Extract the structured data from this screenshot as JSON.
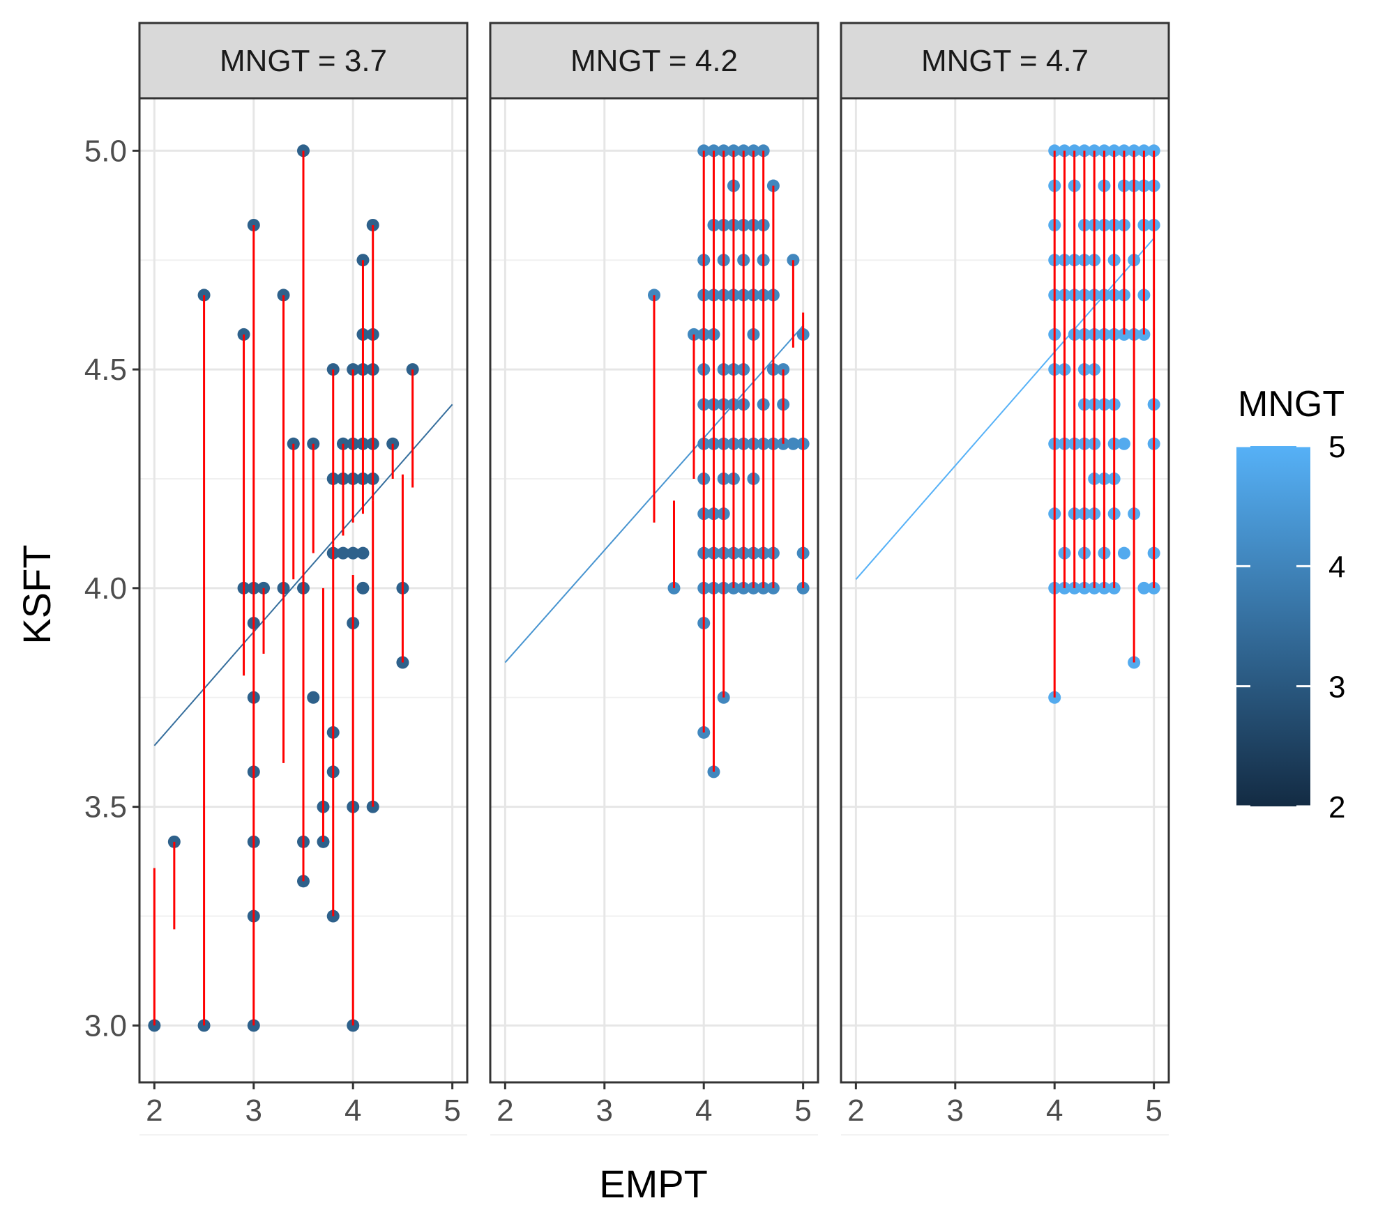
{
  "chart_data": {
    "type": "scatter",
    "facet_variable": "MNGT",
    "xlabel": "EMPT",
    "ylabel": "KSFT",
    "xlim": [
      1.85,
      5.15
    ],
    "ylim": [
      2.87,
      5.12
    ],
    "x_ticks": [
      2,
      3,
      4,
      5
    ],
    "y_ticks": [
      3.0,
      3.5,
      4.0,
      4.5,
      5.0
    ],
    "y_tick_labels": [
      "3.0",
      "3.5",
      "4.0",
      "4.5",
      "5.0"
    ],
    "grid": true,
    "legend": {
      "title": "MNGT",
      "min": 2,
      "max": 5,
      "breaks": [
        2,
        3,
        4,
        5
      ],
      "break_labels": [
        "2",
        "3",
        "4",
        "5"
      ],
      "position": "right",
      "color_low": "#132B43",
      "color_high": "#56B1F7"
    },
    "residual_color": "#ff0000",
    "panels": [
      {
        "label": "MNGT = 3.7",
        "mngt": 3.7,
        "point_mngt": 3.2,
        "fit_line": {
          "x": [
            2.0,
            5.0
          ],
          "y": [
            3.64,
            4.42
          ]
        },
        "points": [
          [
            2.0,
            3.0
          ],
          [
            2.2,
            3.42
          ],
          [
            2.5,
            3.0
          ],
          [
            2.5,
            4.67
          ],
          [
            2.9,
            4.0
          ],
          [
            2.9,
            4.58
          ],
          [
            3.0,
            3.0
          ],
          [
            3.0,
            3.25
          ],
          [
            3.0,
            3.42
          ],
          [
            3.0,
            3.58
          ],
          [
            3.0,
            3.75
          ],
          [
            3.0,
            3.92
          ],
          [
            3.0,
            4.0
          ],
          [
            3.0,
            4.83
          ],
          [
            3.1,
            4.0
          ],
          [
            3.3,
            4.0
          ],
          [
            3.3,
            4.67
          ],
          [
            3.4,
            4.33
          ],
          [
            3.5,
            3.33
          ],
          [
            3.5,
            3.42
          ],
          [
            3.5,
            4.0
          ],
          [
            3.5,
            5.0
          ],
          [
            3.6,
            3.75
          ],
          [
            3.6,
            4.33
          ],
          [
            3.7,
            3.42
          ],
          [
            3.7,
            3.5
          ],
          [
            3.8,
            3.25
          ],
          [
            3.8,
            3.58
          ],
          [
            3.8,
            3.67
          ],
          [
            3.8,
            4.08
          ],
          [
            3.8,
            4.25
          ],
          [
            3.8,
            4.5
          ],
          [
            3.9,
            4.08
          ],
          [
            3.9,
            4.25
          ],
          [
            3.9,
            4.33
          ],
          [
            4.0,
            3.0
          ],
          [
            4.0,
            3.5
          ],
          [
            4.0,
            3.92
          ],
          [
            4.0,
            4.08
          ],
          [
            4.0,
            4.25
          ],
          [
            4.0,
            4.33
          ],
          [
            4.0,
            4.5
          ],
          [
            4.1,
            4.0
          ],
          [
            4.1,
            4.08
          ],
          [
            4.1,
            4.25
          ],
          [
            4.1,
            4.33
          ],
          [
            4.1,
            4.5
          ],
          [
            4.1,
            4.58
          ],
          [
            4.1,
            4.75
          ],
          [
            4.2,
            3.5
          ],
          [
            4.2,
            4.25
          ],
          [
            4.2,
            4.33
          ],
          [
            4.2,
            4.5
          ],
          [
            4.2,
            4.58
          ],
          [
            4.2,
            4.83
          ],
          [
            4.4,
            4.33
          ],
          [
            4.5,
            3.83
          ],
          [
            4.5,
            4.0
          ],
          [
            4.6,
            4.5
          ]
        ],
        "residuals": [
          [
            2.0,
            3.0,
            3.36
          ],
          [
            2.2,
            3.42,
            3.22
          ],
          [
            2.5,
            3.0,
            4.67
          ],
          [
            2.9,
            4.58,
            3.8
          ],
          [
            3.0,
            3.0,
            4.83
          ],
          [
            3.1,
            4.0,
            3.85
          ],
          [
            3.3,
            4.67,
            3.6
          ],
          [
            3.4,
            4.33,
            4.02
          ],
          [
            3.5,
            5.0,
            4.05
          ],
          [
            3.5,
            3.33,
            4.05
          ],
          [
            3.6,
            4.33,
            4.08
          ],
          [
            3.7,
            3.42,
            4.0
          ],
          [
            3.8,
            3.25,
            4.1
          ],
          [
            3.8,
            4.5,
            4.1
          ],
          [
            3.9,
            4.33,
            4.12
          ],
          [
            4.0,
            3.0,
            4.03
          ],
          [
            4.0,
            4.5,
            4.15
          ],
          [
            4.1,
            4.75,
            4.17
          ],
          [
            4.2,
            3.5,
            4.2
          ],
          [
            4.2,
            4.83,
            4.2
          ],
          [
            4.4,
            4.33,
            4.25
          ],
          [
            4.5,
            3.83,
            4.26
          ],
          [
            4.6,
            4.5,
            4.23
          ]
        ]
      },
      {
        "label": "MNGT = 4.2",
        "mngt": 4.2,
        "point_mngt": 4.05,
        "fit_line": {
          "x": [
            2.0,
            5.0
          ],
          "y": [
            3.83,
            4.6
          ]
        },
        "points": [
          [
            3.5,
            4.67
          ],
          [
            3.7,
            4.0
          ],
          [
            3.9,
            4.58
          ],
          [
            4.0,
            3.67
          ],
          [
            4.0,
            3.92
          ],
          [
            4.0,
            4.0
          ],
          [
            4.0,
            4.08
          ],
          [
            4.0,
            4.17
          ],
          [
            4.0,
            4.25
          ],
          [
            4.0,
            4.33
          ],
          [
            4.0,
            4.42
          ],
          [
            4.0,
            4.5
          ],
          [
            4.0,
            4.58
          ],
          [
            4.0,
            4.67
          ],
          [
            4.0,
            4.75
          ],
          [
            4.0,
            5.0
          ],
          [
            4.1,
            3.58
          ],
          [
            4.1,
            4.0
          ],
          [
            4.1,
            4.08
          ],
          [
            4.1,
            4.17
          ],
          [
            4.1,
            4.33
          ],
          [
            4.1,
            4.42
          ],
          [
            4.1,
            4.58
          ],
          [
            4.1,
            4.67
          ],
          [
            4.1,
            4.83
          ],
          [
            4.1,
            5.0
          ],
          [
            4.2,
            3.75
          ],
          [
            4.2,
            4.0
          ],
          [
            4.2,
            4.08
          ],
          [
            4.2,
            4.17
          ],
          [
            4.2,
            4.25
          ],
          [
            4.2,
            4.33
          ],
          [
            4.2,
            4.42
          ],
          [
            4.2,
            4.5
          ],
          [
            4.2,
            4.67
          ],
          [
            4.2,
            4.75
          ],
          [
            4.2,
            4.83
          ],
          [
            4.2,
            5.0
          ],
          [
            4.3,
            4.0
          ],
          [
            4.3,
            4.08
          ],
          [
            4.3,
            4.25
          ],
          [
            4.3,
            4.33
          ],
          [
            4.3,
            4.42
          ],
          [
            4.3,
            4.5
          ],
          [
            4.3,
            4.67
          ],
          [
            4.3,
            4.83
          ],
          [
            4.3,
            4.92
          ],
          [
            4.3,
            5.0
          ],
          [
            4.4,
            4.0
          ],
          [
            4.4,
            4.08
          ],
          [
            4.4,
            4.33
          ],
          [
            4.4,
            4.42
          ],
          [
            4.4,
            4.5
          ],
          [
            4.4,
            4.67
          ],
          [
            4.4,
            4.75
          ],
          [
            4.4,
            4.83
          ],
          [
            4.4,
            5.0
          ],
          [
            4.5,
            4.0
          ],
          [
            4.5,
            4.08
          ],
          [
            4.5,
            4.25
          ],
          [
            4.5,
            4.33
          ],
          [
            4.5,
            4.58
          ],
          [
            4.5,
            4.67
          ],
          [
            4.5,
            4.83
          ],
          [
            4.5,
            5.0
          ],
          [
            4.6,
            4.0
          ],
          [
            4.6,
            4.08
          ],
          [
            4.6,
            4.33
          ],
          [
            4.6,
            4.42
          ],
          [
            4.6,
            4.67
          ],
          [
            4.6,
            4.75
          ],
          [
            4.6,
            4.83
          ],
          [
            4.6,
            5.0
          ],
          [
            4.7,
            4.0
          ],
          [
            4.7,
            4.08
          ],
          [
            4.7,
            4.33
          ],
          [
            4.7,
            4.5
          ],
          [
            4.7,
            4.67
          ],
          [
            4.7,
            4.92
          ],
          [
            4.8,
            4.33
          ],
          [
            4.8,
            4.42
          ],
          [
            4.8,
            4.5
          ],
          [
            4.9,
            4.33
          ],
          [
            4.9,
            4.75
          ],
          [
            5.0,
            4.0
          ],
          [
            5.0,
            4.08
          ],
          [
            5.0,
            4.33
          ],
          [
            5.0,
            4.58
          ]
        ],
        "residuals": [
          [
            3.5,
            4.67,
            4.15
          ],
          [
            3.7,
            4.0,
            4.2
          ],
          [
            3.9,
            4.58,
            4.25
          ],
          [
            4.0,
            3.67,
            5.0
          ],
          [
            4.1,
            3.58,
            5.0
          ],
          [
            4.2,
            3.75,
            5.0
          ],
          [
            4.3,
            4.0,
            5.0
          ],
          [
            4.4,
            4.0,
            5.0
          ],
          [
            4.5,
            4.0,
            5.0
          ],
          [
            4.6,
            4.0,
            5.0
          ],
          [
            4.7,
            4.0,
            4.92
          ],
          [
            4.8,
            4.33,
            4.5
          ],
          [
            4.9,
            4.75,
            4.55
          ],
          [
            5.0,
            4.0,
            4.63
          ]
        ]
      },
      {
        "label": "MNGT = 4.7",
        "mngt": 4.7,
        "point_mngt": 4.85,
        "fit_line": {
          "x": [
            2.0,
            5.0
          ],
          "y": [
            4.02,
            4.8
          ]
        },
        "points": [
          [
            4.0,
            3.75
          ],
          [
            4.0,
            4.0
          ],
          [
            4.0,
            4.17
          ],
          [
            4.0,
            4.33
          ],
          [
            4.0,
            4.5
          ],
          [
            4.0,
            4.58
          ],
          [
            4.0,
            4.67
          ],
          [
            4.0,
            4.75
          ],
          [
            4.0,
            4.83
          ],
          [
            4.0,
            4.92
          ],
          [
            4.0,
            5.0
          ],
          [
            4.1,
            4.0
          ],
          [
            4.1,
            4.08
          ],
          [
            4.1,
            4.33
          ],
          [
            4.1,
            4.5
          ],
          [
            4.1,
            4.67
          ],
          [
            4.1,
            4.75
          ],
          [
            4.1,
            5.0
          ],
          [
            4.2,
            4.0
          ],
          [
            4.2,
            4.17
          ],
          [
            4.2,
            4.33
          ],
          [
            4.2,
            4.58
          ],
          [
            4.2,
            4.67
          ],
          [
            4.2,
            4.75
          ],
          [
            4.2,
            4.92
          ],
          [
            4.2,
            5.0
          ],
          [
            4.3,
            4.0
          ],
          [
            4.3,
            4.08
          ],
          [
            4.3,
            4.17
          ],
          [
            4.3,
            4.33
          ],
          [
            4.3,
            4.42
          ],
          [
            4.3,
            4.5
          ],
          [
            4.3,
            4.58
          ],
          [
            4.3,
            4.67
          ],
          [
            4.3,
            4.75
          ],
          [
            4.3,
            4.83
          ],
          [
            4.3,
            5.0
          ],
          [
            4.4,
            4.0
          ],
          [
            4.4,
            4.17
          ],
          [
            4.4,
            4.25
          ],
          [
            4.4,
            4.33
          ],
          [
            4.4,
            4.42
          ],
          [
            4.4,
            4.5
          ],
          [
            4.4,
            4.58
          ],
          [
            4.4,
            4.67
          ],
          [
            4.4,
            4.75
          ],
          [
            4.4,
            4.83
          ],
          [
            4.4,
            5.0
          ],
          [
            4.5,
            4.0
          ],
          [
            4.5,
            4.08
          ],
          [
            4.5,
            4.25
          ],
          [
            4.5,
            4.42
          ],
          [
            4.5,
            4.58
          ],
          [
            4.5,
            4.67
          ],
          [
            4.5,
            4.83
          ],
          [
            4.5,
            4.92
          ],
          [
            4.5,
            5.0
          ],
          [
            4.6,
            4.0
          ],
          [
            4.6,
            4.17
          ],
          [
            4.6,
            4.25
          ],
          [
            4.6,
            4.33
          ],
          [
            4.6,
            4.42
          ],
          [
            4.6,
            4.58
          ],
          [
            4.6,
            4.67
          ],
          [
            4.6,
            4.75
          ],
          [
            4.6,
            4.83
          ],
          [
            4.6,
            5.0
          ],
          [
            4.7,
            4.08
          ],
          [
            4.7,
            4.33
          ],
          [
            4.7,
            4.58
          ],
          [
            4.7,
            4.67
          ],
          [
            4.7,
            4.83
          ],
          [
            4.7,
            4.92
          ],
          [
            4.7,
            5.0
          ],
          [
            4.8,
            3.83
          ],
          [
            4.8,
            4.17
          ],
          [
            4.8,
            4.58
          ],
          [
            4.8,
            4.75
          ],
          [
            4.8,
            4.92
          ],
          [
            4.8,
            5.0
          ],
          [
            4.9,
            4.0
          ],
          [
            4.9,
            4.58
          ],
          [
            4.9,
            4.67
          ],
          [
            4.9,
            4.83
          ],
          [
            4.9,
            4.92
          ],
          [
            4.9,
            5.0
          ],
          [
            5.0,
            4.0
          ],
          [
            5.0,
            4.08
          ],
          [
            5.0,
            4.33
          ],
          [
            5.0,
            4.42
          ],
          [
            5.0,
            4.83
          ],
          [
            5.0,
            4.92
          ],
          [
            5.0,
            5.0
          ]
        ],
        "residuals": [
          [
            4.0,
            3.75,
            5.0
          ],
          [
            4.1,
            4.0,
            5.0
          ],
          [
            4.2,
            4.0,
            5.0
          ],
          [
            4.3,
            4.0,
            5.0
          ],
          [
            4.4,
            4.0,
            5.0
          ],
          [
            4.5,
            4.0,
            5.0
          ],
          [
            4.6,
            4.0,
            5.0
          ],
          [
            4.7,
            4.58,
            5.0
          ],
          [
            4.8,
            3.83,
            5.0
          ],
          [
            4.9,
            4.58,
            5.0
          ],
          [
            5.0,
            4.0,
            5.0
          ]
        ]
      }
    ]
  }
}
